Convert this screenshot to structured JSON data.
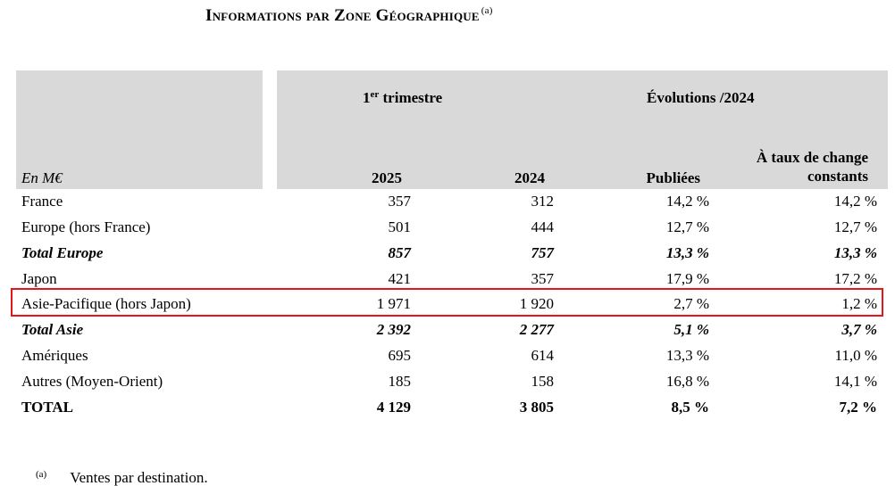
{
  "title": {
    "text": "Informations par Zone Géographique",
    "note_mark": "(a)"
  },
  "header": {
    "unit": "En M€",
    "trimestre_prefix": "1",
    "trimestre_sup": "er",
    "trimestre_suffix": " trimestre",
    "evolutions": "Évolutions /2024",
    "col_2025": "2025",
    "col_2024": "2024",
    "col_publiees": "Publiées",
    "col_taux_line1": "À taux de change",
    "col_taux_line2": "constants"
  },
  "rows": [
    {
      "label": "France",
      "v2025": "357",
      "v2024": "312",
      "publiees": "14,2 %",
      "taux": "14,2 %"
    },
    {
      "label": "Europe (hors France)",
      "v2025": "501",
      "v2024": "444",
      "publiees": "12,7 %",
      "taux": "12,7 %"
    },
    {
      "label": "Total Europe",
      "v2025": "857",
      "v2024": "757",
      "publiees": "13,3 %",
      "taux": "13,3 %"
    },
    {
      "label": "Japon",
      "v2025": "421",
      "v2024": "357",
      "publiees": "17,9 %",
      "taux": "17,2 %"
    },
    {
      "label": "Asie-Pacifique (hors Japon)",
      "v2025": "1 971",
      "v2024": "1 920",
      "publiees": "2,7 %",
      "taux": "1,2 %"
    },
    {
      "label": "Total Asie",
      "v2025": "2 392",
      "v2024": "2 277",
      "publiees": "5,1 %",
      "taux": "3,7 %"
    },
    {
      "label": "Amériques",
      "v2025": "695",
      "v2024": "614",
      "publiees": "13,3 %",
      "taux": "11,0 %"
    },
    {
      "label": "Autres (Moyen-Orient)",
      "v2025": "185",
      "v2024": "158",
      "publiees": "16,8 %",
      "taux": "14,1 %"
    },
    {
      "label": "TOTAL",
      "v2025": "4 129",
      "v2024": "3 805",
      "publiees": "8,5 %",
      "taux": "7,2 %"
    }
  ],
  "footnote": {
    "mark": "(a)",
    "text": "Ventes par destination."
  },
  "colors": {
    "header_bg": "#d9d9d9",
    "highlight_border": "#e8141c"
  }
}
